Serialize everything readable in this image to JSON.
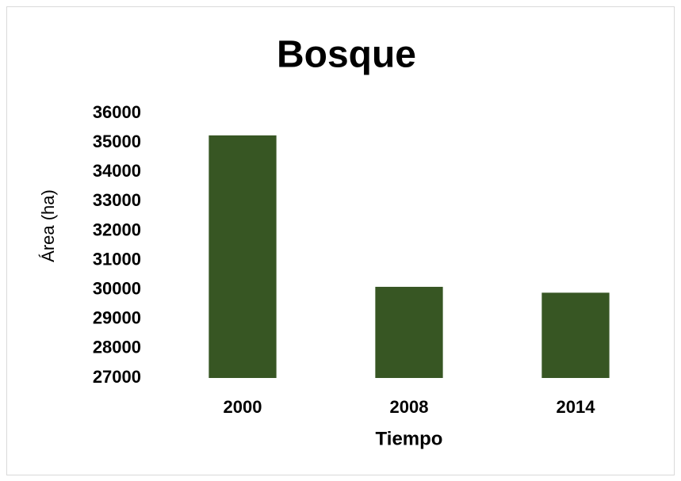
{
  "chart_data": {
    "type": "bar",
    "title": "Bosque",
    "x_label": "Tiempo",
    "y_label": "Área (ha)",
    "categories": [
      "2000",
      "2008",
      "2014"
    ],
    "values": [
      35250,
      30100,
      29900
    ],
    "color": "#375623",
    "ylim": [
      27000,
      36000
    ],
    "yticks": [
      27000,
      28000,
      29000,
      30000,
      31000,
      32000,
      33000,
      34000,
      35000,
      36000
    ],
    "grid": false
  }
}
